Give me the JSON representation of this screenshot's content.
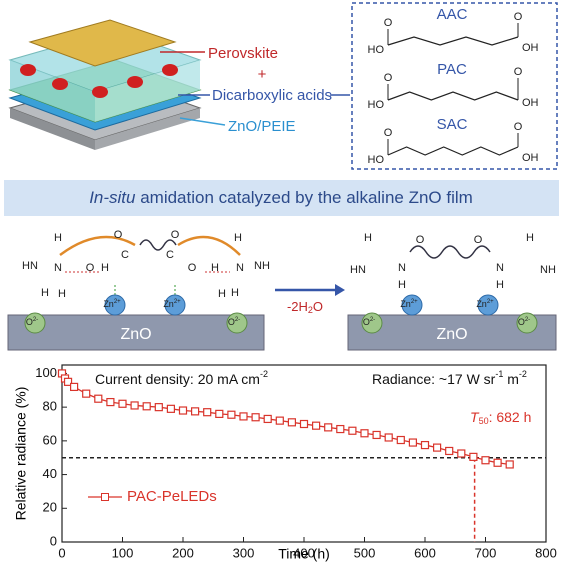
{
  "device": {
    "perovskite": "Perovskite",
    "plus": "+",
    "acids": "Dicarboxylic acids",
    "etl": "ZnO/PEIE"
  },
  "molecules": [
    {
      "name": "AAC",
      "hydroxyl_left": "HO",
      "hydroxyl_right": "OH",
      "carbonyl_left": "O",
      "carbonyl_right": "O"
    },
    {
      "name": "PAC",
      "hydroxyl_left": "HO",
      "hydroxyl_right": "OH",
      "carbonyl_left": "O",
      "carbonyl_right": "O"
    },
    {
      "name": "SAC",
      "hydroxyl_left": "HO",
      "hydroxyl_right": "OH",
      "carbonyl_left": "O",
      "carbonyl_right": "O"
    }
  ],
  "banner": {
    "italic": "In-situ",
    "rest": " amidation catalyzed by the alkaline ZnO film"
  },
  "scheme": {
    "left": {
      "substrate": "ZnO",
      "atoms": [
        "H",
        "HN",
        "N",
        "H",
        "H",
        "O",
        "C",
        "O",
        "H",
        "H",
        "C",
        "O",
        "O",
        "H",
        "N",
        "H",
        "NH",
        "H"
      ],
      "ions": [
        {
          "base": "O",
          "charge": "2-"
        },
        {
          "base": "Zn",
          "charge": "2+"
        },
        {
          "base": "Zn",
          "charge": "2+"
        },
        {
          "base": "O",
          "charge": "2-"
        }
      ]
    },
    "arrow": {
      "text": "-2H",
      "sub": "2",
      "tail": "O"
    },
    "right": {
      "substrate": "ZnO",
      "atoms": [
        "H",
        "HN",
        "N",
        "H",
        "O",
        "O",
        "N",
        "H",
        "NH",
        "H"
      ],
      "ions": [
        {
          "base": "O",
          "charge": "2-"
        },
        {
          "base": "Zn",
          "charge": "2+"
        },
        {
          "base": "Zn",
          "charge": "2+"
        },
        {
          "base": "O",
          "charge": "2-"
        }
      ]
    }
  },
  "chart_data": {
    "type": "line",
    "xlabel": "Time (h)",
    "ylabel": "Relative radiance (%)",
    "annotations": {
      "current_density": [
        "Current density: 20 mA cm",
        "-2"
      ],
      "radiance": [
        "Radiance: ~17 W sr",
        "-1",
        " m",
        "-2"
      ],
      "t50": [
        "T",
        "50",
        ": 682 h"
      ]
    },
    "threshold": 50,
    "t50": 682,
    "x": [
      0,
      5,
      10,
      20,
      40,
      60,
      80,
      100,
      120,
      140,
      160,
      180,
      200,
      220,
      240,
      260,
      280,
      300,
      320,
      340,
      360,
      380,
      400,
      420,
      440,
      460,
      480,
      500,
      520,
      540,
      560,
      580,
      600,
      620,
      640,
      660,
      680,
      700,
      720,
      740
    ],
    "series": [
      {
        "name": "PAC-PeLEDs",
        "color": "#d9342b",
        "values": [
          100,
          97,
          95,
          92,
          88,
          85,
          83,
          82,
          81,
          80.5,
          80,
          79,
          78,
          77.5,
          77,
          76,
          75.5,
          74.5,
          74,
          73,
          72,
          71,
          70,
          69,
          68,
          67,
          66,
          64.5,
          63.5,
          62,
          60.5,
          59,
          57.5,
          56,
          54,
          52.5,
          50.5,
          48.5,
          47,
          46
        ]
      }
    ],
    "xlim": [
      0,
      800
    ],
    "ylim": [
      0,
      105
    ],
    "xticks": [
      0,
      100,
      200,
      300,
      400,
      500,
      600,
      700,
      800
    ],
    "yticks": [
      0,
      20,
      40,
      60,
      80,
      100
    ]
  }
}
